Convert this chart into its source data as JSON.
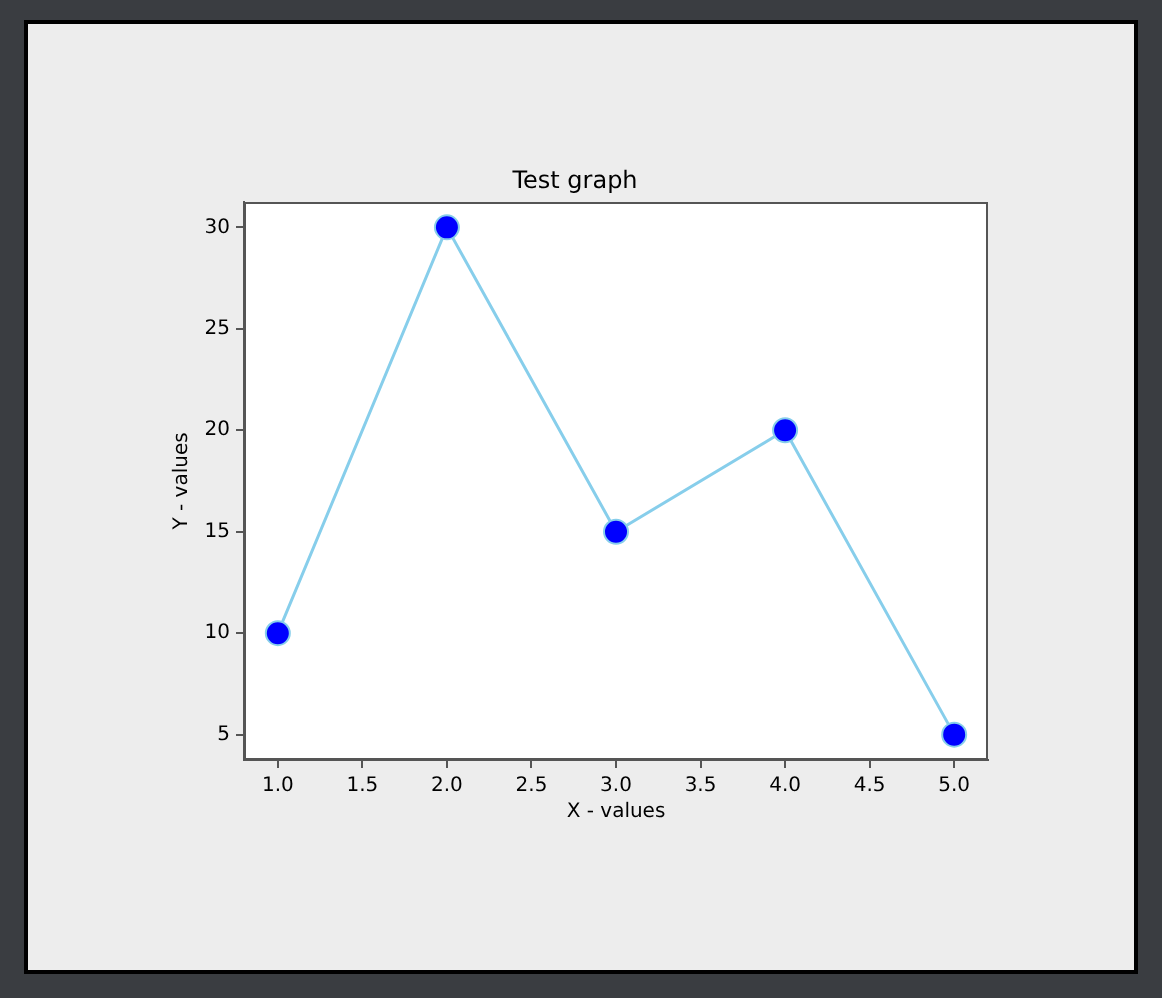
{
  "chart_data": {
    "type": "line",
    "title": "Test graph",
    "xlabel": "X - values",
    "ylabel": "Y - values",
    "x": [
      1,
      2,
      3,
      4,
      5
    ],
    "series": [
      {
        "color": "#87ceeb",
        "colors": [
          "#0000ff",
          "#0000ff",
          "#0000ff",
          "#0000ff",
          "#0000ff"
        ],
        "values": [
          10,
          30,
          15,
          20,
          5
        ]
      }
    ],
    "xlim": [
      0.8,
      5.2
    ],
    "xticks": [
      {
        "value": 1,
        "label": "1.0"
      },
      {
        "value": 1.5,
        "label": "1.5"
      },
      {
        "value": 2,
        "label": "2.0"
      },
      {
        "value": 2.5,
        "label": "2.5"
      },
      {
        "value": 3,
        "label": "3.0"
      },
      {
        "value": 3.5,
        "label": "3.5"
      },
      {
        "value": 4,
        "label": "4.0"
      },
      {
        "value": 4.5,
        "label": "4.5"
      },
      {
        "value": 5,
        "label": "5.0"
      }
    ],
    "ylim": [
      3.75,
      31.25
    ],
    "yticks": [
      5,
      10,
      15,
      20,
      25,
      30
    ],
    "grid": false,
    "marker": "circle",
    "line_style": "solid"
  }
}
